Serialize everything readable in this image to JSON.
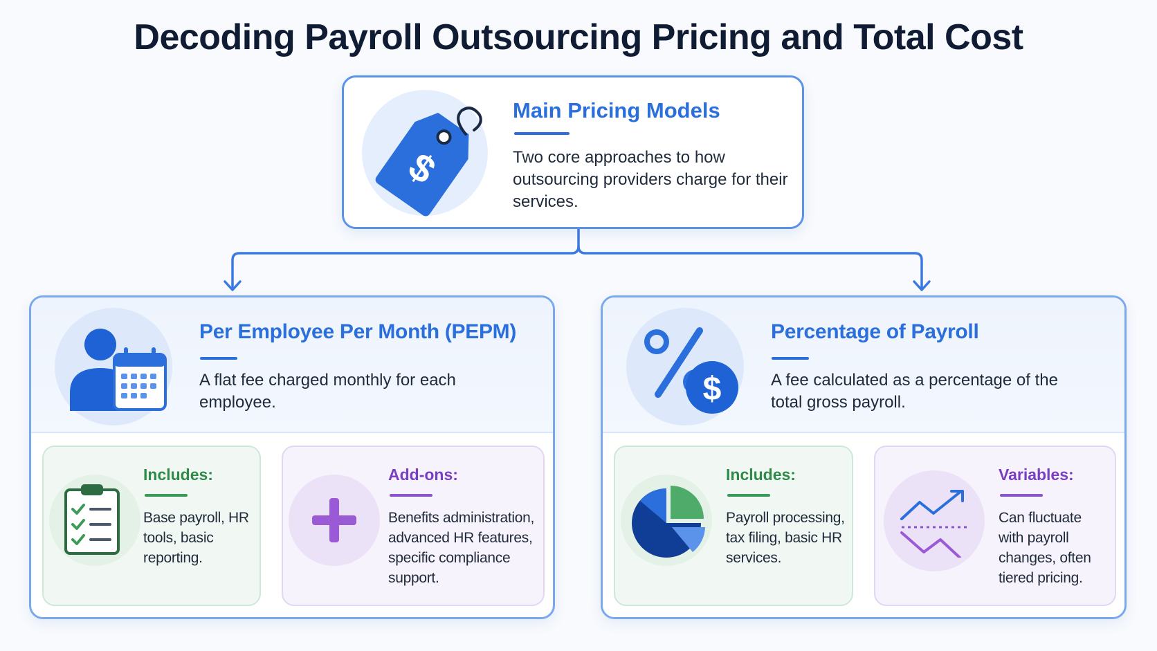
{
  "title": "Decoding Payroll Outsourcing Pricing and Total Cost",
  "main": {
    "heading": "Main Pricing Models",
    "description": "Two core approaches to how outsourcing providers charge for their services.",
    "icon": "dollar-price-tag-icon"
  },
  "models": [
    {
      "heading": "Per Employee Per Month (PEPM)",
      "description": "A flat fee charged monthly for each employee.",
      "icon": "person-calendar-icon",
      "includes": {
        "title": "Includes:",
        "description": "Base payroll, HR tools, basic reporting.",
        "icon": "clipboard-checklist-icon"
      },
      "extra": {
        "title": "Add-ons:",
        "description": "Benefits administration, advanced HR features, specific compliance support.",
        "icon": "plus-icon"
      }
    },
    {
      "heading": "Percentage of Payroll",
      "description": "A fee calculated as a percentage of the total gross payroll.",
      "icon": "percent-dollar-icon",
      "includes": {
        "title": "Includes:",
        "description": "Payroll processing, tax filing, basic HR services.",
        "icon": "pie-chart-icon"
      },
      "extra": {
        "title": "Variables:",
        "description": "Can fluctuate with payroll changes, often tiered pricing.",
        "icon": "fluctuating-trend-icon"
      }
    }
  ],
  "colors": {
    "primary_blue": "#2a6fdc",
    "green": "#2f8a4a",
    "purple": "#7a3fc0",
    "title_navy": "#0f1c33"
  }
}
